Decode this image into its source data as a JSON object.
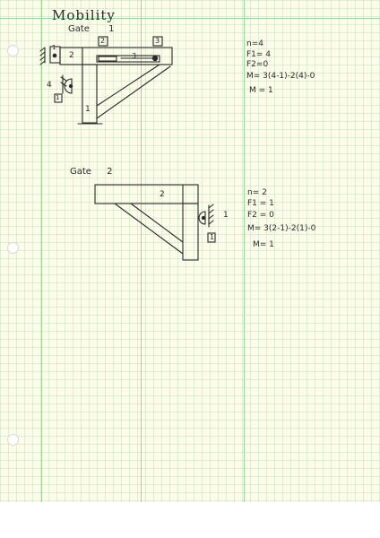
{
  "page": {
    "title": "Mobility",
    "ink_color": "#2a2a2a",
    "paper_color": "#fbfce9",
    "rule_color": "#9dd79a"
  },
  "gate1": {
    "heading": "Gate",
    "number": "1",
    "link_labels": [
      "1",
      "2",
      "3",
      "4",
      "1",
      "2",
      "3"
    ],
    "boxed_labels": [
      "2",
      "3",
      "1"
    ],
    "equations": {
      "n": "n=4",
      "f1": "F1= 4",
      "f2": "F2=0",
      "m_formula": "M= 3(4-1)-2(4)-0",
      "m_result": "M = 1"
    }
  },
  "gate2": {
    "heading": "Gate",
    "number": "2",
    "link_labels": [
      "2",
      "1"
    ],
    "boxed_labels": [
      "1"
    ],
    "equations": {
      "n": "n= 2",
      "f1": "F1 = 1",
      "f2": "F2 = 0",
      "m_formula": "M= 3(2-1)-2(1)-0",
      "m_result": "M= 1"
    }
  }
}
